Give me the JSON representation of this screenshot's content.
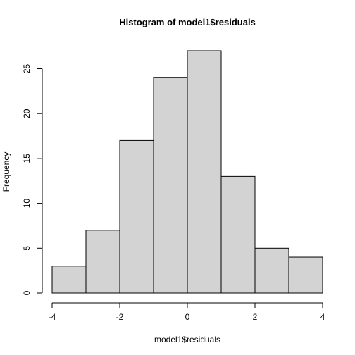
{
  "chart_data": {
    "type": "bar",
    "title": "Histogram of model1$residuals",
    "xlabel": "model1$residuals",
    "ylabel": "Frequency",
    "bins": [
      {
        "from": -4,
        "to": -3,
        "count": 3
      },
      {
        "from": -3,
        "to": -2,
        "count": 7
      },
      {
        "from": -2,
        "to": -1,
        "count": 17
      },
      {
        "from": -1,
        "to": 0,
        "count": 24
      },
      {
        "from": 0,
        "to": 1,
        "count": 27
      },
      {
        "from": 1,
        "to": 2,
        "count": 13
      },
      {
        "from": 2,
        "to": 3,
        "count": 5
      },
      {
        "from": 3,
        "to": 4,
        "count": 4
      }
    ],
    "xlim": [
      -4,
      4
    ],
    "ylim": [
      0,
      27
    ],
    "xticks": [
      -4,
      -2,
      0,
      2,
      4
    ],
    "yticks": [
      0,
      5,
      10,
      15,
      20,
      25
    ],
    "bar_color": "#d3d3d3",
    "grid": false
  }
}
